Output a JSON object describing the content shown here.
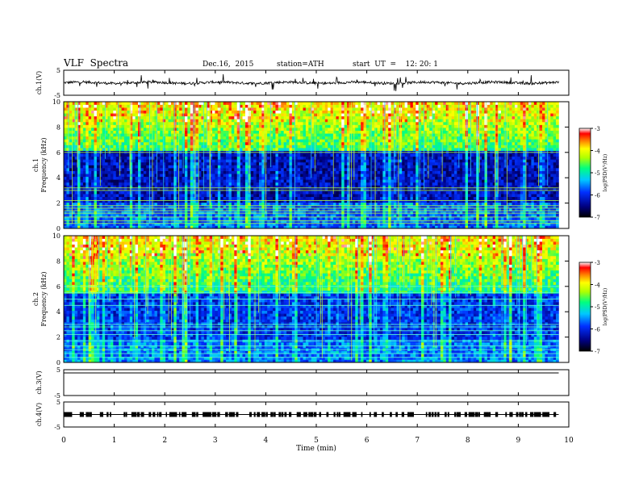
{
  "header": {
    "title": "VLF  Spectra",
    "date": "Dec.16,  2015",
    "station": "station=ATH",
    "start_label": "start  UT  =    12: 20: 1"
  },
  "chart_data": [
    {
      "type": "line",
      "panel": "ch1-waveform",
      "ylabel": "ch.1(V)",
      "ylim": [
        -5,
        5
      ],
      "yticks": [
        "5",
        "-5"
      ],
      "x_range_min": [
        0,
        9.8
      ],
      "baseline_v": 0
    },
    {
      "type": "heatmap",
      "panel": "ch1-spectrogram",
      "ylabel": "ch.1\nFrequency  (kHz)",
      "ylim": [
        0,
        10
      ],
      "yticks": [
        "0",
        "2",
        "4",
        "6",
        "8",
        "10"
      ],
      "colorbar": {
        "label": "log(PSD(V²/Hz)",
        "range": [
          -7,
          -3
        ],
        "ticks": [
          "-3",
          "-4",
          "-5",
          "-6",
          "-7"
        ]
      }
    },
    {
      "type": "heatmap",
      "panel": "ch2-spectrogram",
      "ylabel": "ch.2\nFrequency  (kHz)",
      "ylim": [
        0,
        10
      ],
      "yticks": [
        "0",
        "2",
        "4",
        "6",
        "8",
        "10"
      ],
      "colorbar": {
        "label": "log(PSD(V²/Hz)",
        "range": [
          -7,
          -3
        ],
        "ticks": [
          "-3",
          "-4",
          "-5",
          "-6",
          "-7"
        ]
      }
    },
    {
      "type": "line",
      "panel": "ch3-waveform",
      "ylabel": "ch.3(V)",
      "ylim": [
        -5,
        5
      ],
      "yticks": [
        "5",
        "-5"
      ]
    },
    {
      "type": "line",
      "panel": "ch4-waveform",
      "ylabel": "ch.4(V)",
      "ylim": [
        -5,
        5
      ],
      "yticks": [
        "5",
        "-5"
      ]
    }
  ],
  "x_axis": {
    "label": "Time  (min)",
    "range": [
      0,
      10
    ],
    "ticks": [
      "0",
      "1",
      "2",
      "3",
      "4",
      "5",
      "6",
      "7",
      "8",
      "9",
      "10"
    ]
  },
  "colors": {
    "frame": "#000000",
    "spectrum_low": "#000080",
    "spectrum_high": "#ff0000"
  }
}
